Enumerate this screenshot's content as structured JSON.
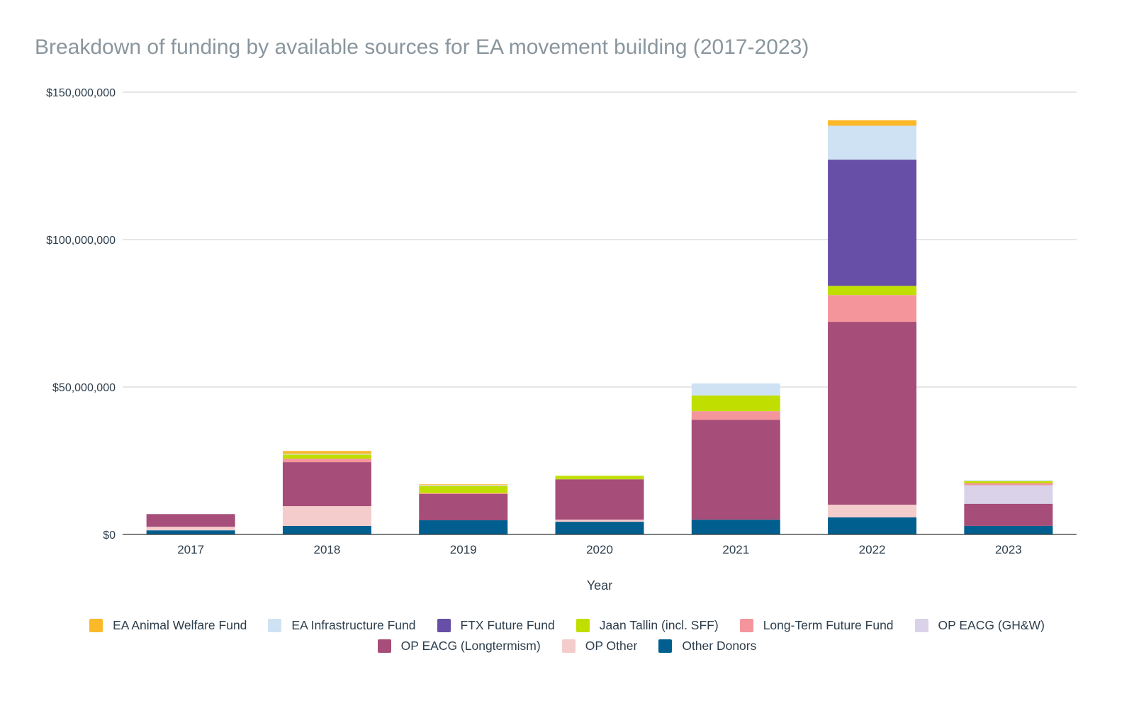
{
  "chart_data": {
    "type": "bar",
    "stacked": true,
    "title": "Breakdown of funding by available sources for EA movement building (2017-2023)",
    "xlabel": "Year",
    "ylabel": "",
    "ylim": [
      0,
      150000000
    ],
    "yticks": [
      0,
      50000000,
      100000000,
      150000000
    ],
    "ytick_labels": [
      "$0",
      "$50,000,000",
      "$100,000,000",
      "$150,000,000"
    ],
    "grid": true,
    "legend_position": "bottom",
    "categories": [
      "2017",
      "2018",
      "2019",
      "2020",
      "2021",
      "2022",
      "2023"
    ],
    "series": [
      {
        "name": "Other Donors",
        "color": "#005f8f",
        "values": [
          1400000,
          2900000,
          4800000,
          4300000,
          5000000,
          5800000,
          2900000
        ]
      },
      {
        "name": "OP Other",
        "color": "#f4cccc",
        "values": [
          1200000,
          6700000,
          0,
          700000,
          0,
          4300000,
          0
        ]
      },
      {
        "name": "OP EACG (Longtermism)",
        "color": "#a64d79",
        "values": [
          4300000,
          14900000,
          8900000,
          13700000,
          33900000,
          62000000,
          7500000
        ]
      },
      {
        "name": "OP EACG (GH&W)",
        "color": "#d9d2e9",
        "values": [
          0,
          0,
          0,
          0,
          0,
          0,
          6300000
        ]
      },
      {
        "name": "Long-Term Future Fund",
        "color": "#f4959b",
        "values": [
          0,
          1200000,
          300000,
          0,
          2900000,
          9100000,
          700000
        ]
      },
      {
        "name": "Jaan Tallin (incl. SFF)",
        "color": "#c0df00",
        "values": [
          0,
          1400000,
          2400000,
          1200000,
          5300000,
          3100000,
          700000
        ]
      },
      {
        "name": "FTX Future Fund",
        "color": "#674ea7",
        "values": [
          0,
          0,
          0,
          0,
          0,
          42800000,
          0
        ]
      },
      {
        "name": "EA Infrastructure Fund",
        "color": "#cfe2f3",
        "values": [
          0,
          300000,
          300000,
          0,
          4100000,
          11500000,
          300000
        ]
      },
      {
        "name": "EA Animal Welfare Fund",
        "color": "#fbb828",
        "values": [
          0,
          900000,
          300000,
          0,
          0,
          1900000,
          0
        ]
      }
    ],
    "legend": {
      "rows": [
        [
          "EA Animal Welfare Fund",
          "EA Infrastructure Fund",
          "FTX Future Fund",
          "Jaan Tallin (incl. SFF)",
          "Long-Term Future Fund",
          "OP EACG (GH&W)"
        ],
        [
          "OP EACG (Longtermism)",
          "OP Other",
          "Other Donors"
        ]
      ]
    }
  }
}
